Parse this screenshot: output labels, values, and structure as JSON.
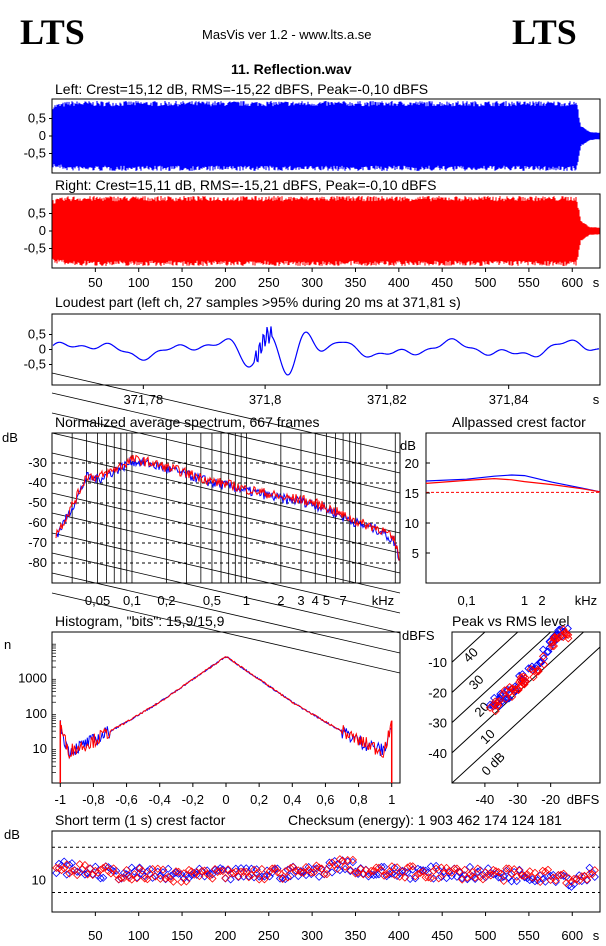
{
  "header": {
    "logo_left": "LTS",
    "logo_right": "LTS",
    "app_title": "MasVis ver 1.2 - www.lts.a.se",
    "track_title": "11. Reflection.wav"
  },
  "colors": {
    "left": "#0000ff",
    "right": "#ff0000",
    "grid": "#000000"
  },
  "chart_data": [
    {
      "id": "left_waveform",
      "type": "area",
      "title": "Left: Crest=15,12 dB, RMS=-15,22 dBFS, Peak=-0,10 dBFS",
      "yticks": [
        "0,5",
        "0",
        "-0,5"
      ],
      "ylim": [
        -1,
        1
      ],
      "xlim": [
        0,
        632
      ],
      "envelope": {
        "x": [
          0,
          20,
          100,
          200,
          300,
          370,
          450,
          550,
          605,
          610,
          620,
          632
        ],
        "peak": [
          0.9,
          1,
          1,
          1,
          1,
          1,
          1,
          1,
          1,
          0.3,
          0.12,
          0.1
        ]
      },
      "series_color": "left"
    },
    {
      "id": "right_waveform",
      "type": "area",
      "title": "Right: Crest=15,11 dB, RMS=-15,21 dBFS, Peak=-0,10 dBFS",
      "yticks": [
        "0,5",
        "0",
        "-0,5"
      ],
      "ylim": [
        -1,
        1
      ],
      "xlim": [
        0,
        632
      ],
      "xticks": [
        "50",
        "100",
        "150",
        "200",
        "250",
        "300",
        "350",
        "400",
        "450",
        "500",
        "550",
        "600"
      ],
      "xunit": "s",
      "series_color": "right"
    },
    {
      "id": "loudest_part",
      "type": "line",
      "title": "Loudest part (left  ch, 27 samples >95% during 20 ms at 371,81 s)",
      "yticks": [
        "0,5",
        "0",
        "-0,5"
      ],
      "xticks": [
        "371,78",
        "371,8",
        "371,82",
        "371,84"
      ],
      "xunit": "s",
      "xlim": [
        371.765,
        371.855
      ],
      "ylim": [
        -1,
        1
      ]
    },
    {
      "id": "spectrum",
      "type": "line",
      "title": "Normalized average spectrum, 667 frames",
      "ylabel": "dB",
      "yticks": [
        "-30",
        "-40",
        "-50",
        "-60",
        "-70",
        "-80"
      ],
      "xticks": [
        "0,05",
        "0,1",
        "0,2",
        "0,5",
        "1",
        "2",
        "3",
        "4",
        "5",
        "7"
      ],
      "xunit": "kHz",
      "log_x": true,
      "xlim": [
        0.02,
        22
      ],
      "ylim": [
        -90,
        -15
      ],
      "points": {
        "x": [
          0.02,
          0.03,
          0.04,
          0.05,
          0.07,
          0.1,
          0.13,
          0.2,
          0.3,
          0.5,
          1,
          2,
          3,
          5,
          7,
          10,
          15,
          20,
          22
        ],
        "y": [
          -69,
          -52,
          -37,
          -38,
          -34,
          -29,
          -30,
          -33,
          -36,
          -40,
          -44,
          -48,
          -49,
          -53,
          -57,
          -61,
          -64,
          -70,
          -80
        ]
      }
    },
    {
      "id": "allpassed_crest",
      "type": "line",
      "title": "Allpassed crest factor",
      "ylabel": "dB",
      "yticks": [
        "20",
        "15",
        "10",
        "5"
      ],
      "xticks": [
        "0,1",
        "1",
        "2"
      ],
      "xunit": "kHz",
      "log_x": true,
      "xlim": [
        0.02,
        20
      ],
      "ylim": [
        0,
        25
      ],
      "series": [
        {
          "color": "left",
          "x": [
            0.02,
            0.1,
            0.3,
            0.6,
            1,
            3,
            10,
            20
          ],
          "y": [
            17.0,
            17.3,
            17.8,
            18.0,
            17.9,
            16.8,
            15.8,
            15.2
          ]
        },
        {
          "color": "right",
          "x": [
            0.02,
            0.1,
            0.3,
            0.6,
            1,
            3,
            10,
            20
          ],
          "y": [
            16.6,
            17.1,
            17.4,
            17.2,
            16.9,
            16.4,
            15.7,
            15.2
          ]
        }
      ],
      "reference": 15.1
    },
    {
      "id": "histogram",
      "type": "line",
      "title": "Histogram, \"bits\": 15,9/15,9",
      "ylabel": "n",
      "yticks": [
        "1000",
        "100",
        "10"
      ],
      "xticks": [
        "-1",
        "-0,8",
        "-0,6",
        "-0,4",
        "-0,2",
        "0",
        "0,2",
        "0,4",
        "0,6",
        "0,8",
        "1"
      ],
      "log_y": true,
      "xlim": [
        -1.05,
        1.05
      ],
      "ylim": [
        1,
        20000
      ],
      "points": {
        "x": [
          -1,
          -0.95,
          -0.8,
          -0.6,
          -0.4,
          -0.2,
          0,
          0.2,
          0.4,
          0.6,
          0.8,
          0.95,
          1
        ],
        "y": [
          40,
          8,
          16,
          55,
          200,
          900,
          4000,
          900,
          200,
          55,
          16,
          8,
          40
        ]
      }
    },
    {
      "id": "peak_vs_rms",
      "type": "scatter",
      "title": "Peak vs RMS level",
      "ylabel": "dBFS",
      "xlabel": "dBFS",
      "yticks": [
        "-10",
        "-20",
        "-30",
        "-40"
      ],
      "xticks": [
        "-40",
        "-30",
        "-20"
      ],
      "diag_labels": [
        "40",
        "30",
        "20",
        "10",
        "0 dB"
      ],
      "xlim": [
        -50,
        -5
      ],
      "ylim": [
        -50,
        0
      ],
      "series": [
        {
          "color": "left",
          "x": [
            -38,
            -36,
            -34,
            -32,
            -30,
            -27,
            -24,
            -21,
            -19,
            -18,
            -17,
            -16
          ],
          "y": [
            -24,
            -23,
            -22,
            -20,
            -17,
            -14,
            -10,
            -6,
            -3,
            -2,
            -1,
            -1
          ]
        },
        {
          "color": "right",
          "x": [
            -37,
            -35,
            -33,
            -31,
            -28,
            -25,
            -22,
            -20,
            -18,
            -17,
            -16,
            -15
          ],
          "y": [
            -25,
            -22,
            -21,
            -19,
            -16,
            -13,
            -9,
            -5,
            -3,
            -2,
            -1,
            -1
          ]
        }
      ]
    },
    {
      "id": "short_term_crest",
      "type": "scatter",
      "title": "Short term (1 s) crest factor",
      "annotation": "Checksum (energy):  1 903 462 174 124 181",
      "ylabel": "dB",
      "yticks": [
        "10"
      ],
      "xticks": [
        "50",
        "100",
        "150",
        "200",
        "250",
        "300",
        "350",
        "400",
        "450",
        "500",
        "550",
        "600"
      ],
      "xunit": "s",
      "xlim": [
        0,
        632
      ],
      "ylim": [
        0,
        25
      ],
      "dashed_refs": [
        20,
        6
      ],
      "series_profile": {
        "x": [
          0,
          50,
          150,
          300,
          340,
          360,
          450,
          550,
          590,
          600,
          620,
          632
        ],
        "y": [
          14,
          12,
          11,
          12,
          15,
          12,
          12,
          11,
          11,
          9,
          12,
          12
        ]
      }
    }
  ]
}
